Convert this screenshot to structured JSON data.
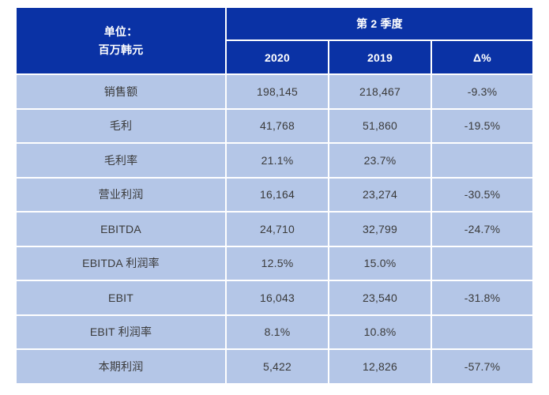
{
  "colors": {
    "header_bg": "#0A32A5",
    "row_bg": "#B4C6E7",
    "header_text": "#FFFFFF",
    "cell_text": "#3A3A3A",
    "background": "#FFFFFF",
    "gridline": "#FFFFFF"
  },
  "chart_data": {
    "type": "table",
    "title": "第 2 季度",
    "unit_line1": "单位：",
    "unit_line2": "百万韩元",
    "columns": [
      "2020",
      "2019",
      "Δ%"
    ],
    "rows": [
      {
        "label": "销售额",
        "values": [
          "198,145",
          "218,467",
          "-9.3%"
        ]
      },
      {
        "label": "毛利",
        "values": [
          "41,768",
          "51,860",
          "-19.5%"
        ]
      },
      {
        "label": "毛利率",
        "values": [
          "21.1%",
          "23.7%",
          ""
        ]
      },
      {
        "label": "营业利润",
        "values": [
          "16,164",
          "23,274",
          "-30.5%"
        ]
      },
      {
        "label": "EBITDA",
        "values": [
          "24,710",
          "32,799",
          "-24.7%"
        ]
      },
      {
        "label": "EBITDA 利润率",
        "values": [
          "12.5%",
          "15.0%",
          ""
        ]
      },
      {
        "label": "EBIT",
        "values": [
          "16,043",
          "23,540",
          "-31.8%"
        ]
      },
      {
        "label": "EBIT 利润率",
        "values": [
          "8.1%",
          "10.8%",
          ""
        ]
      },
      {
        "label": "本期利润",
        "values": [
          "5,422",
          "12,826",
          "-57.7%"
        ]
      }
    ]
  }
}
